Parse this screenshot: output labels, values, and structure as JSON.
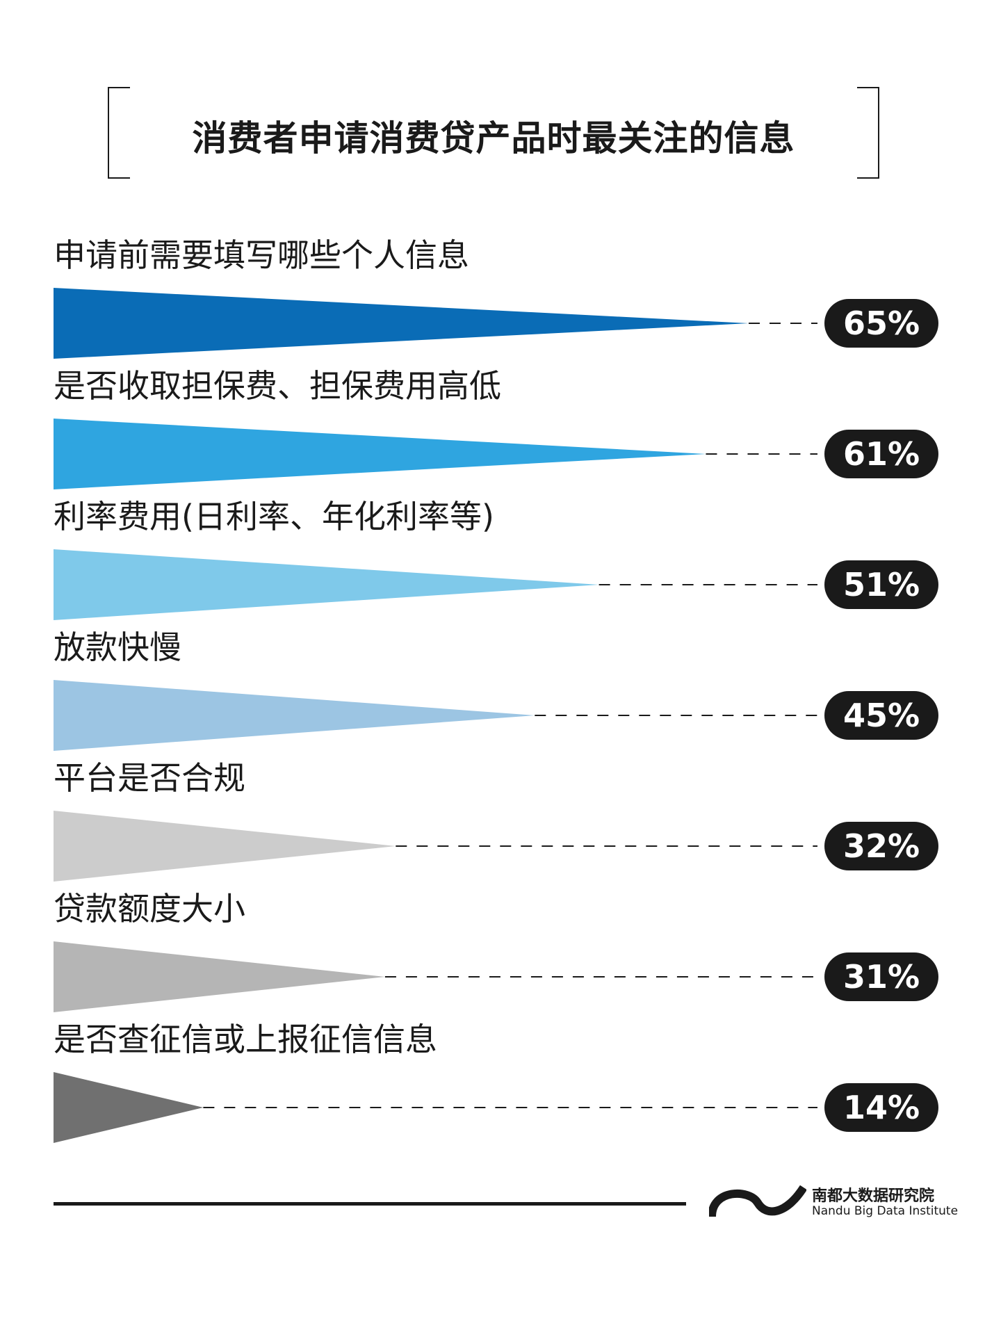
{
  "title": "消费者申请消费贷产品时最关注的信息",
  "chart_data": {
    "type": "bar",
    "title": "消费者申请消费贷产品时最关注的信息",
    "categories": [
      "申请前需要填写哪些个人信息",
      "是否收取担保费、担保费用高低",
      "利率费用(日利率、年化利率等)",
      "放款快慢",
      "平台是否合规",
      "贷款额度大小",
      "是否查征信或上报征信信息"
    ],
    "values": [
      65,
      61,
      51,
      45,
      32,
      31,
      14
    ],
    "value_labels": [
      "65%",
      "61%",
      "51%",
      "45%",
      "32%",
      "31%",
      "14%"
    ],
    "colors": [
      "#0a6cb6",
      "#2fa5e0",
      "#7fc9ea",
      "#9cc5e3",
      "#cccccc",
      "#b5b5b5",
      "#707070"
    ],
    "unit": "%",
    "orientation": "horizontal"
  },
  "footer": {
    "org_cn": "南都大数据研究院",
    "org_en": "Nandu Big Data Institute"
  }
}
